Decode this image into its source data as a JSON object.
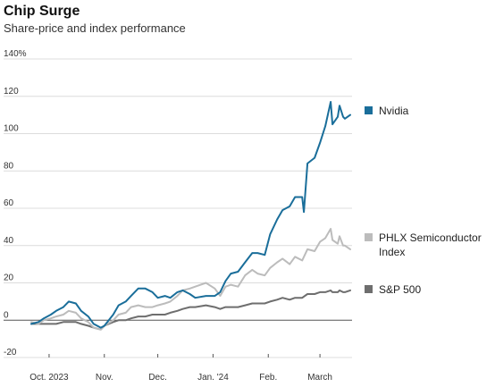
{
  "header": {
    "title": "Chip Surge",
    "subtitle": "Share-price and index performance"
  },
  "chart_data": {
    "type": "line",
    "title": "Chip Surge",
    "subtitle": "Share-price and index performance",
    "xlabel": "",
    "ylabel": "",
    "ylim": [
      -20,
      140
    ],
    "yticks": [
      {
        "value": 140,
        "label": "140%"
      },
      {
        "value": 120,
        "label": "120"
      },
      {
        "value": 100,
        "label": "100"
      },
      {
        "value": 80,
        "label": "80"
      },
      {
        "value": 60,
        "label": "60"
      },
      {
        "value": 40,
        "label": "40"
      },
      {
        "value": 20,
        "label": "20"
      },
      {
        "value": 0,
        "label": "0"
      },
      {
        "value": -20,
        "label": "-20"
      }
    ],
    "xticks": [
      {
        "date": "2023-10-01",
        "label": "Oct. 2023"
      },
      {
        "date": "2023-11-01",
        "label": "Nov."
      },
      {
        "date": "2023-12-01",
        "label": "Dec."
      },
      {
        "date": "2024-01-01",
        "label": "Jan. '24"
      },
      {
        "date": "2024-02-01",
        "label": "Feb."
      },
      {
        "date": "2024-03-01",
        "label": "March"
      }
    ],
    "xlim": [
      "2023-09-20",
      "2024-03-19"
    ],
    "grid": true,
    "legend": "right",
    "series": [
      {
        "name": "Nvidia",
        "color": "#1a6e9a",
        "points": [
          [
            "2023-09-21",
            -2
          ],
          [
            "2023-09-25",
            -1
          ],
          [
            "2023-09-28",
            1
          ],
          [
            "2023-10-02",
            3
          ],
          [
            "2023-10-05",
            5
          ],
          [
            "2023-10-09",
            7
          ],
          [
            "2023-10-12",
            10
          ],
          [
            "2023-10-16",
            9
          ],
          [
            "2023-10-19",
            5
          ],
          [
            "2023-10-23",
            2
          ],
          [
            "2023-10-26",
            -2
          ],
          [
            "2023-10-30",
            -4
          ],
          [
            "2023-11-01",
            -3
          ],
          [
            "2023-11-06",
            3
          ],
          [
            "2023-11-09",
            8
          ],
          [
            "2023-11-13",
            10
          ],
          [
            "2023-11-16",
            13
          ],
          [
            "2023-11-20",
            17
          ],
          [
            "2023-11-24",
            17
          ],
          [
            "2023-11-28",
            15
          ],
          [
            "2023-12-01",
            12
          ],
          [
            "2023-12-05",
            13
          ],
          [
            "2023-12-08",
            12
          ],
          [
            "2023-12-12",
            15
          ],
          [
            "2023-12-15",
            16
          ],
          [
            "2023-12-19",
            14
          ],
          [
            "2023-12-22",
            12
          ],
          [
            "2023-12-28",
            13
          ],
          [
            "2024-01-02",
            13
          ],
          [
            "2024-01-05",
            15
          ],
          [
            "2024-01-08",
            21
          ],
          [
            "2024-01-11",
            25
          ],
          [
            "2024-01-15",
            26
          ],
          [
            "2024-01-19",
            31
          ],
          [
            "2024-01-23",
            36
          ],
          [
            "2024-01-26",
            36
          ],
          [
            "2024-01-30",
            35
          ],
          [
            "2024-02-02",
            46
          ],
          [
            "2024-02-06",
            54
          ],
          [
            "2024-02-09",
            59
          ],
          [
            "2024-02-13",
            61
          ],
          [
            "2024-02-16",
            66
          ],
          [
            "2024-02-20",
            66
          ],
          [
            "2024-02-21",
            58
          ],
          [
            "2024-02-23",
            84
          ],
          [
            "2024-02-27",
            87
          ],
          [
            "2024-03-01",
            95
          ],
          [
            "2024-03-04",
            104
          ],
          [
            "2024-03-07",
            117
          ],
          [
            "2024-03-08",
            105
          ],
          [
            "2024-03-11",
            109
          ],
          [
            "2024-03-12",
            115
          ],
          [
            "2024-03-14",
            109
          ],
          [
            "2024-03-15",
            108
          ],
          [
            "2024-03-18",
            110
          ]
        ]
      },
      {
        "name": "PHLX Semiconductor Index",
        "color": "#bcbcbc",
        "points": [
          [
            "2023-09-21",
            -1
          ],
          [
            "2023-09-25",
            -2
          ],
          [
            "2023-09-28",
            0
          ],
          [
            "2023-10-02",
            1
          ],
          [
            "2023-10-05",
            2
          ],
          [
            "2023-10-09",
            3
          ],
          [
            "2023-10-12",
            5
          ],
          [
            "2023-10-16",
            4
          ],
          [
            "2023-10-19",
            1
          ],
          [
            "2023-10-23",
            -1
          ],
          [
            "2023-10-26",
            -4
          ],
          [
            "2023-10-30",
            -5
          ],
          [
            "2023-11-01",
            -3
          ],
          [
            "2023-11-06",
            0
          ],
          [
            "2023-11-09",
            3
          ],
          [
            "2023-11-13",
            4
          ],
          [
            "2023-11-16",
            7
          ],
          [
            "2023-11-20",
            8
          ],
          [
            "2023-11-24",
            7
          ],
          [
            "2023-11-28",
            7
          ],
          [
            "2023-12-01",
            8
          ],
          [
            "2023-12-05",
            9
          ],
          [
            "2023-12-08",
            10
          ],
          [
            "2023-12-12",
            13
          ],
          [
            "2023-12-15",
            16
          ],
          [
            "2023-12-19",
            17
          ],
          [
            "2023-12-22",
            18
          ],
          [
            "2023-12-28",
            20
          ],
          [
            "2024-01-02",
            17
          ],
          [
            "2024-01-05",
            13
          ],
          [
            "2024-01-08",
            18
          ],
          [
            "2024-01-11",
            19
          ],
          [
            "2024-01-15",
            18
          ],
          [
            "2024-01-19",
            24
          ],
          [
            "2024-01-23",
            27
          ],
          [
            "2024-01-26",
            25
          ],
          [
            "2024-01-30",
            24
          ],
          [
            "2024-02-02",
            28
          ],
          [
            "2024-02-06",
            31
          ],
          [
            "2024-02-09",
            33
          ],
          [
            "2024-02-13",
            30
          ],
          [
            "2024-02-16",
            34
          ],
          [
            "2024-02-20",
            32
          ],
          [
            "2024-02-23",
            38
          ],
          [
            "2024-02-27",
            37
          ],
          [
            "2024-03-01",
            42
          ],
          [
            "2024-03-04",
            44
          ],
          [
            "2024-03-07",
            49
          ],
          [
            "2024-03-08",
            43
          ],
          [
            "2024-03-11",
            41
          ],
          [
            "2024-03-12",
            45
          ],
          [
            "2024-03-14",
            40
          ],
          [
            "2024-03-15",
            40
          ],
          [
            "2024-03-18",
            38
          ]
        ]
      },
      {
        "name": "S&P 500",
        "color": "#6e6e6e",
        "points": [
          [
            "2023-09-21",
            -2
          ],
          [
            "2023-09-25",
            -2
          ],
          [
            "2023-09-28",
            -2
          ],
          [
            "2023-10-02",
            -2
          ],
          [
            "2023-10-05",
            -2
          ],
          [
            "2023-10-09",
            -1
          ],
          [
            "2023-10-12",
            -1
          ],
          [
            "2023-10-16",
            -1
          ],
          [
            "2023-10-19",
            -2
          ],
          [
            "2023-10-23",
            -3
          ],
          [
            "2023-10-26",
            -4
          ],
          [
            "2023-10-30",
            -5
          ],
          [
            "2023-11-01",
            -3
          ],
          [
            "2023-11-06",
            -1
          ],
          [
            "2023-11-09",
            0
          ],
          [
            "2023-11-13",
            0
          ],
          [
            "2023-11-16",
            1
          ],
          [
            "2023-11-20",
            2
          ],
          [
            "2023-11-24",
            2
          ],
          [
            "2023-11-28",
            3
          ],
          [
            "2023-12-01",
            3
          ],
          [
            "2023-12-05",
            3
          ],
          [
            "2023-12-08",
            4
          ],
          [
            "2023-12-12",
            5
          ],
          [
            "2023-12-15",
            6
          ],
          [
            "2023-12-19",
            7
          ],
          [
            "2023-12-22",
            7
          ],
          [
            "2023-12-28",
            8
          ],
          [
            "2024-01-02",
            7
          ],
          [
            "2024-01-05",
            6
          ],
          [
            "2024-01-08",
            7
          ],
          [
            "2024-01-11",
            7
          ],
          [
            "2024-01-15",
            7
          ],
          [
            "2024-01-19",
            8
          ],
          [
            "2024-01-23",
            9
          ],
          [
            "2024-01-26",
            9
          ],
          [
            "2024-01-30",
            9
          ],
          [
            "2024-02-02",
            10
          ],
          [
            "2024-02-06",
            11
          ],
          [
            "2024-02-09",
            12
          ],
          [
            "2024-02-13",
            11
          ],
          [
            "2024-02-16",
            12
          ],
          [
            "2024-02-20",
            12
          ],
          [
            "2024-02-23",
            14
          ],
          [
            "2024-02-27",
            14
          ],
          [
            "2024-03-01",
            15
          ],
          [
            "2024-03-04",
            15
          ],
          [
            "2024-03-07",
            16
          ],
          [
            "2024-03-08",
            15
          ],
          [
            "2024-03-11",
            15
          ],
          [
            "2024-03-12",
            16
          ],
          [
            "2024-03-14",
            15
          ],
          [
            "2024-03-15",
            15
          ],
          [
            "2024-03-18",
            16
          ]
        ]
      }
    ]
  }
}
